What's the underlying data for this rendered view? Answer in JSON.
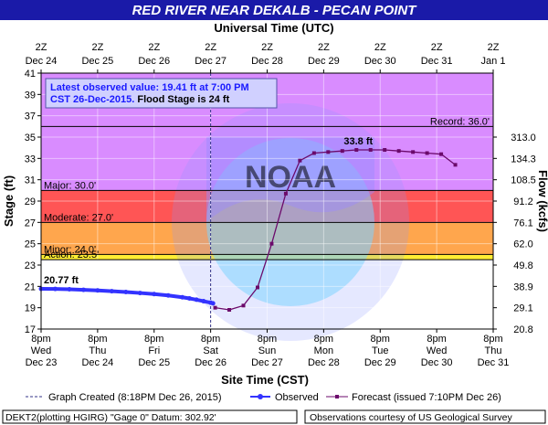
{
  "chart_data": {
    "type": "line",
    "title": "RED RIVER NEAR DEKALB - PECAN POINT",
    "top_axis_title": "Universal Time (UTC)",
    "bottom_axis_title": "Site Time (CST)",
    "ylabel_left": "Stage (ft)",
    "ylabel_right": "Flow (kcfs)",
    "ylim": [
      17,
      41
    ],
    "y_ticks": [
      17,
      19,
      21,
      23,
      25,
      27,
      29,
      31,
      33,
      35,
      37,
      39,
      41
    ],
    "flow_ticks": [
      {
        "stage": 17,
        "label": "20.8"
      },
      {
        "stage": 19,
        "label": "29.1"
      },
      {
        "stage": 21,
        "label": "38.9"
      },
      {
        "stage": 23,
        "label": "49.8"
      },
      {
        "stage": 25,
        "label": "62.0"
      },
      {
        "stage": 27,
        "label": "76.1"
      },
      {
        "stage": 29,
        "label": "91.2"
      },
      {
        "stage": 31,
        "label": "108.5"
      },
      {
        "stage": 33,
        "label": "134.3"
      },
      {
        "stage": 35,
        "label": "313.0"
      }
    ],
    "x_range_days": [
      0,
      8
    ],
    "bottom_ticks": [
      {
        "d": 0,
        "l1": "8pm",
        "l2": "Wed",
        "l3": "Dec 23"
      },
      {
        "d": 1,
        "l1": "8pm",
        "l2": "Thu",
        "l3": "Dec 24"
      },
      {
        "d": 2,
        "l1": "8pm",
        "l2": "Fri",
        "l3": "Dec 25"
      },
      {
        "d": 3,
        "l1": "8pm",
        "l2": "Sat",
        "l3": "Dec 26"
      },
      {
        "d": 4,
        "l1": "8pm",
        "l2": "Sun",
        "l3": "Dec 27"
      },
      {
        "d": 5,
        "l1": "8pm",
        "l2": "Mon",
        "l3": "Dec 28"
      },
      {
        "d": 6,
        "l1": "8pm",
        "l2": "Tue",
        "l3": "Dec 29"
      },
      {
        "d": 7,
        "l1": "8pm",
        "l2": "Wed",
        "l3": "Dec 30"
      },
      {
        "d": 8,
        "l1": "8pm",
        "l2": "Thu",
        "l3": "Dec 31"
      }
    ],
    "top_ticks": [
      {
        "d": 0,
        "l1": "2Z",
        "l2": "Dec 24"
      },
      {
        "d": 1,
        "l1": "2Z",
        "l2": "Dec 25"
      },
      {
        "d": 2,
        "l1": "2Z",
        "l2": "Dec 26"
      },
      {
        "d": 3,
        "l1": "2Z",
        "l2": "Dec 27"
      },
      {
        "d": 4,
        "l1": "2Z",
        "l2": "Dec 28"
      },
      {
        "d": 5,
        "l1": "2Z",
        "l2": "Dec 29"
      },
      {
        "d": 6,
        "l1": "2Z",
        "l2": "Dec 30"
      },
      {
        "d": 7,
        "l1": "2Z",
        "l2": "Dec 31"
      },
      {
        "d": 8,
        "l1": "2Z",
        "l2": "Jan 1"
      }
    ],
    "flood_categories": [
      {
        "name": "Record",
        "label": "Record: 36.0'",
        "stage": 36.0
      },
      {
        "name": "Major",
        "label": "Major: 30.0'",
        "stage": 30.0,
        "color": "#ff5555"
      },
      {
        "name": "Moderate",
        "label": "Moderate: 27.0'",
        "stage": 27.0,
        "color": "#ffa64d"
      },
      {
        "name": "Minor",
        "label": "Minor: 24.0'",
        "stage": 24.0,
        "color": "#ffee33"
      },
      {
        "name": "Action",
        "label": "Action: 23.5'",
        "stage": 23.5
      }
    ],
    "band_colors": {
      "above_major": "#d98cff",
      "major": "#ff5555",
      "moderate": "#ffa64d",
      "minor": "#ffee33",
      "normal": "#ffffff"
    },
    "observed": {
      "color": "#3333ff",
      "days": [
        0,
        0.25,
        0.5,
        0.75,
        1.0,
        1.25,
        1.5,
        1.75,
        2.0,
        2.25,
        2.5,
        2.625,
        2.75,
        2.875,
        3.0,
        3.0417
      ],
      "stage": [
        20.77,
        20.76,
        20.73,
        20.68,
        20.62,
        20.55,
        20.47,
        20.38,
        20.28,
        20.15,
        19.98,
        19.87,
        19.75,
        19.61,
        19.47,
        19.41
      ]
    },
    "forecast": {
      "color": "#6b0a6b",
      "days": [
        3.08,
        3.33,
        3.58,
        3.83,
        4.08,
        4.33,
        4.58,
        4.83,
        5.08,
        5.33,
        5.58,
        5.83,
        6.08,
        6.33,
        6.58,
        6.83,
        7.08,
        7.33
      ],
      "stage": [
        19.0,
        18.8,
        19.2,
        20.9,
        25.0,
        29.7,
        32.8,
        33.5,
        33.6,
        33.7,
        33.8,
        33.8,
        33.8,
        33.7,
        33.6,
        33.5,
        33.4,
        32.4
      ]
    },
    "crest_label": "33.8 ft",
    "first_obs_label": "20.77 ft",
    "graph_created_day": 3.0,
    "info_box": {
      "line1": "Latest observed value: 19.41 ft at 7:00 PM",
      "line2_blue": "CST 26-Dec-2015.",
      "line2_black": " Flood Stage is 24 ft"
    },
    "legend": {
      "graph_created": "Graph Created (8:18PM Dec 26, 2015)",
      "observed": "Observed",
      "forecast": "Forecast (issued 7:10PM Dec 26)"
    },
    "footer_left": "DEKT2(plotting HGIRG) \"Gage 0\" Datum: 302.92'",
    "footer_right": "Observations courtesy of US Geological Survey",
    "watermark": "NOAA"
  }
}
